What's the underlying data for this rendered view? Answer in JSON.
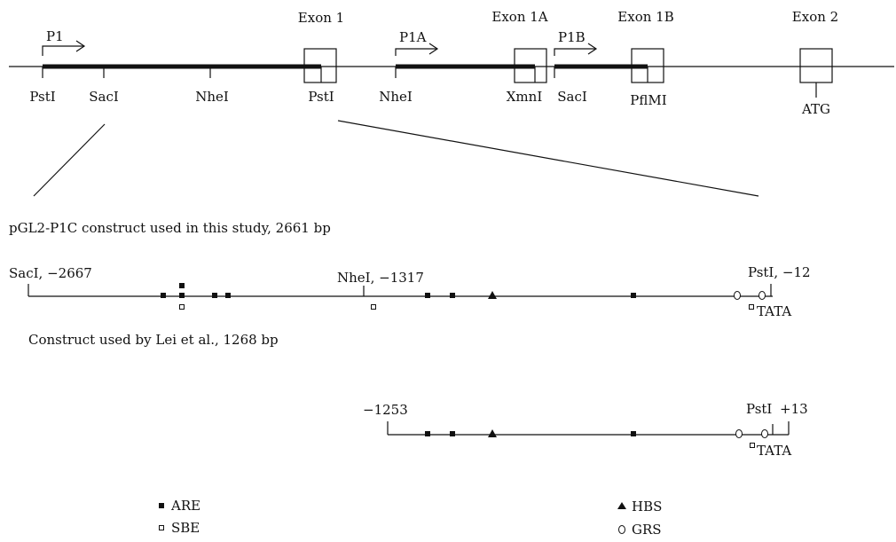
{
  "gene_map": {
    "exon_labels": [
      "Exon 1",
      "Exon 1A",
      "Exon 1B",
      "Exon 2"
    ],
    "promoter_labels": [
      "P1",
      "P1A",
      "P1B"
    ],
    "site_labels": [
      "PstI",
      "SacI",
      "NheI",
      "PstI",
      "NheI",
      "XmnI",
      "SacI",
      "PflMI",
      "ATG"
    ]
  },
  "construct_1": {
    "title": "pGL2-P1C construct used in this study, 2661 bp",
    "left_label": "SacI, −2667",
    "mid_label": "NheI, −1317",
    "right_label": "PstI, −12",
    "tata_label": "TATA"
  },
  "construct_2": {
    "title": "Construct used by Lei et al., 1268 bp",
    "left_label": "−1253",
    "pst_label": "PstI",
    "right_label": "+13",
    "tata_label": "TATA"
  },
  "legend": {
    "items": [
      {
        "symbol": "filled-square",
        "label": "ARE"
      },
      {
        "symbol": "open-square",
        "label": "SBE"
      },
      {
        "symbol": "filled-triangle",
        "label": "HBS"
      },
      {
        "symbol": "open-circle",
        "label": "GRS"
      }
    ]
  }
}
